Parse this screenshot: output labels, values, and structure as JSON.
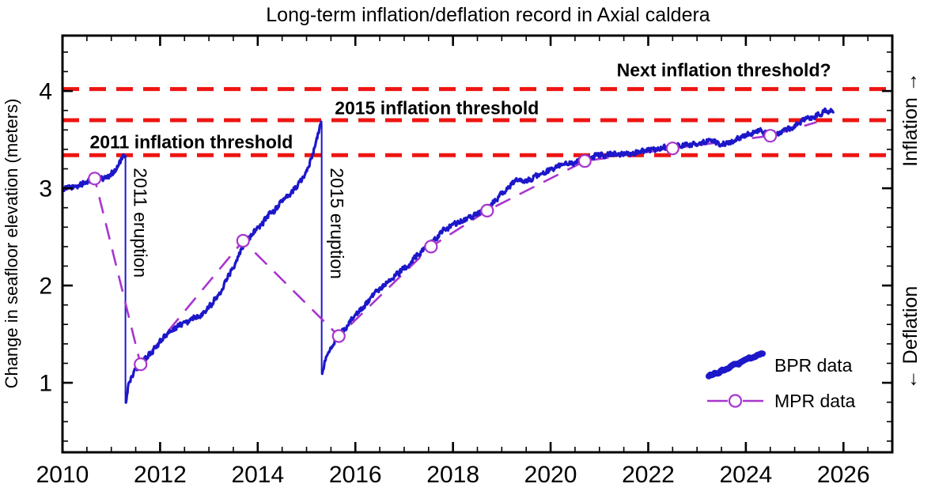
{
  "chart_data": {
    "type": "line",
    "title": "Long-term inflation/deflation record in Axial caldera",
    "xlabel": "",
    "ylabel": "Change in seafloor elevation (meters)",
    "xlim": [
      2010,
      2027
    ],
    "ylim": [
      0.285,
      4.57
    ],
    "x_major_ticks": [
      2010,
      2012,
      2014,
      2016,
      2018,
      2020,
      2022,
      2024,
      2026
    ],
    "x_minor_step": 0.5,
    "y_major_ticks": [
      1,
      2,
      3,
      4
    ],
    "y_minor_step": 0.2,
    "grid": false,
    "legend_position": "inside lower right",
    "colors": {
      "bpr": "#1c17c9",
      "mpr": "#a835cf",
      "threshold": "#ee1512",
      "axis": "#000000"
    },
    "series": [
      {
        "name": "BPR data",
        "style": "noisy-line",
        "color": "#1c17c9",
        "segments": [
          [
            [
              2010.0,
              2.99
            ],
            [
              2010.2,
              3.01
            ],
            [
              2010.45,
              3.04
            ],
            [
              2010.7,
              3.08
            ],
            [
              2010.95,
              3.12
            ],
            [
              2011.1,
              3.19
            ],
            [
              2011.2,
              3.27
            ],
            [
              2011.29,
              3.33
            ]
          ],
          [
            [
              2011.3,
              0.8
            ],
            [
              2011.36,
              1.0
            ],
            [
              2011.48,
              1.12
            ],
            [
              2011.62,
              1.21
            ],
            [
              2011.8,
              1.31
            ],
            [
              2012.0,
              1.43
            ],
            [
              2012.2,
              1.53
            ],
            [
              2012.4,
              1.6
            ],
            [
              2012.62,
              1.65
            ],
            [
              2012.85,
              1.73
            ],
            [
              2013.05,
              1.84
            ],
            [
              2013.25,
              1.98
            ],
            [
              2013.5,
              2.22
            ],
            [
              2013.7,
              2.45
            ],
            [
              2013.9,
              2.57
            ],
            [
              2014.15,
              2.69
            ],
            [
              2014.4,
              2.81
            ],
            [
              2014.65,
              2.93
            ],
            [
              2014.9,
              3.08
            ],
            [
              2015.1,
              3.3
            ],
            [
              2015.22,
              3.52
            ],
            [
              2015.3,
              3.67
            ]
          ],
          [
            [
              2015.32,
              1.1
            ],
            [
              2015.4,
              1.28
            ],
            [
              2015.55,
              1.42
            ],
            [
              2015.66,
              1.48
            ],
            [
              2015.85,
              1.6
            ],
            [
              2016.1,
              1.74
            ],
            [
              2016.35,
              1.88
            ],
            [
              2016.6,
              2.0
            ],
            [
              2016.9,
              2.13
            ],
            [
              2017.2,
              2.27
            ],
            [
              2017.5,
              2.42
            ],
            [
              2017.8,
              2.55
            ],
            [
              2018.1,
              2.63
            ],
            [
              2018.4,
              2.7
            ],
            [
              2018.7,
              2.78
            ],
            [
              2018.95,
              2.9
            ],
            [
              2019.15,
              3.0
            ],
            [
              2019.3,
              3.06
            ],
            [
              2019.5,
              3.06
            ],
            [
              2019.7,
              3.11
            ],
            [
              2019.95,
              3.16
            ],
            [
              2020.2,
              3.21
            ],
            [
              2020.45,
              3.25
            ],
            [
              2020.7,
              3.28
            ],
            [
              2020.95,
              3.32
            ],
            [
              2021.2,
              3.34
            ],
            [
              2021.45,
              3.36
            ],
            [
              2021.7,
              3.37
            ],
            [
              2021.95,
              3.39
            ],
            [
              2022.2,
              3.4
            ],
            [
              2022.45,
              3.41
            ],
            [
              2022.7,
              3.43
            ],
            [
              2022.95,
              3.45
            ],
            [
              2023.15,
              3.48
            ],
            [
              2023.3,
              3.51
            ],
            [
              2023.45,
              3.47
            ],
            [
              2023.65,
              3.49
            ],
            [
              2023.85,
              3.53
            ],
            [
              2024.05,
              3.56
            ],
            [
              2024.25,
              3.61
            ],
            [
              2024.45,
              3.55
            ],
            [
              2024.6,
              3.55
            ],
            [
              2024.8,
              3.6
            ],
            [
              2025.0,
              3.65
            ],
            [
              2025.2,
              3.7
            ],
            [
              2025.45,
              3.74
            ],
            [
              2025.65,
              3.77
            ],
            [
              2025.79,
              3.79
            ]
          ]
        ],
        "drops": [
          {
            "x": 2011.29,
            "from": 3.33,
            "to": 0.8
          },
          {
            "x": 2015.31,
            "from": 3.67,
            "to": 1.1
          }
        ]
      },
      {
        "name": "MPR data",
        "style": "dashed-line-open-circles",
        "color": "#a835cf",
        "points": [
          {
            "x": 2010.0,
            "y": 2.97,
            "marker": false
          },
          {
            "x": 2010.66,
            "y": 3.1,
            "marker": true
          },
          {
            "x": 2011.6,
            "y": 1.19,
            "marker": true
          },
          {
            "x": 2013.7,
            "y": 2.46,
            "marker": true
          },
          {
            "x": 2015.66,
            "y": 1.48,
            "marker": true
          },
          {
            "x": 2017.55,
            "y": 2.4,
            "marker": true
          },
          {
            "x": 2018.7,
            "y": 2.77,
            "marker": true
          },
          {
            "x": 2020.7,
            "y": 3.28,
            "marker": true
          },
          {
            "x": 2022.5,
            "y": 3.41,
            "marker": true
          },
          {
            "x": 2024.5,
            "y": 3.54,
            "marker": true
          },
          {
            "x": 2025.45,
            "y": 3.68,
            "marker": false
          }
        ]
      }
    ],
    "annotations": {
      "thresholds": [
        {
          "label": "2011 inflation threshold",
          "value": 3.34,
          "label_x": 2012.64,
          "label_y": 3.41
        },
        {
          "label": "2015 inflation threshold",
          "value": 3.7,
          "label_x": 2017.67,
          "label_y": 3.76
        },
        {
          "label": "Next inflation threshold?",
          "value": 4.02,
          "label_x": 2023.55,
          "label_y": 4.15
        }
      ],
      "eruptions": [
        {
          "label": "2011 eruption",
          "year": 2011.29,
          "top": 3.33,
          "bottom": 0.8,
          "label_year": 2011.47,
          "label_top_value": 3.21
        },
        {
          "label": "2015 eruption",
          "year": 2015.31,
          "top": 3.67,
          "bottom": 1.1,
          "label_year": 2015.49,
          "label_top_value": 3.21
        }
      ],
      "direction_labels": {
        "inflation": "Inflation →",
        "deflation": "← Deflation"
      }
    }
  }
}
